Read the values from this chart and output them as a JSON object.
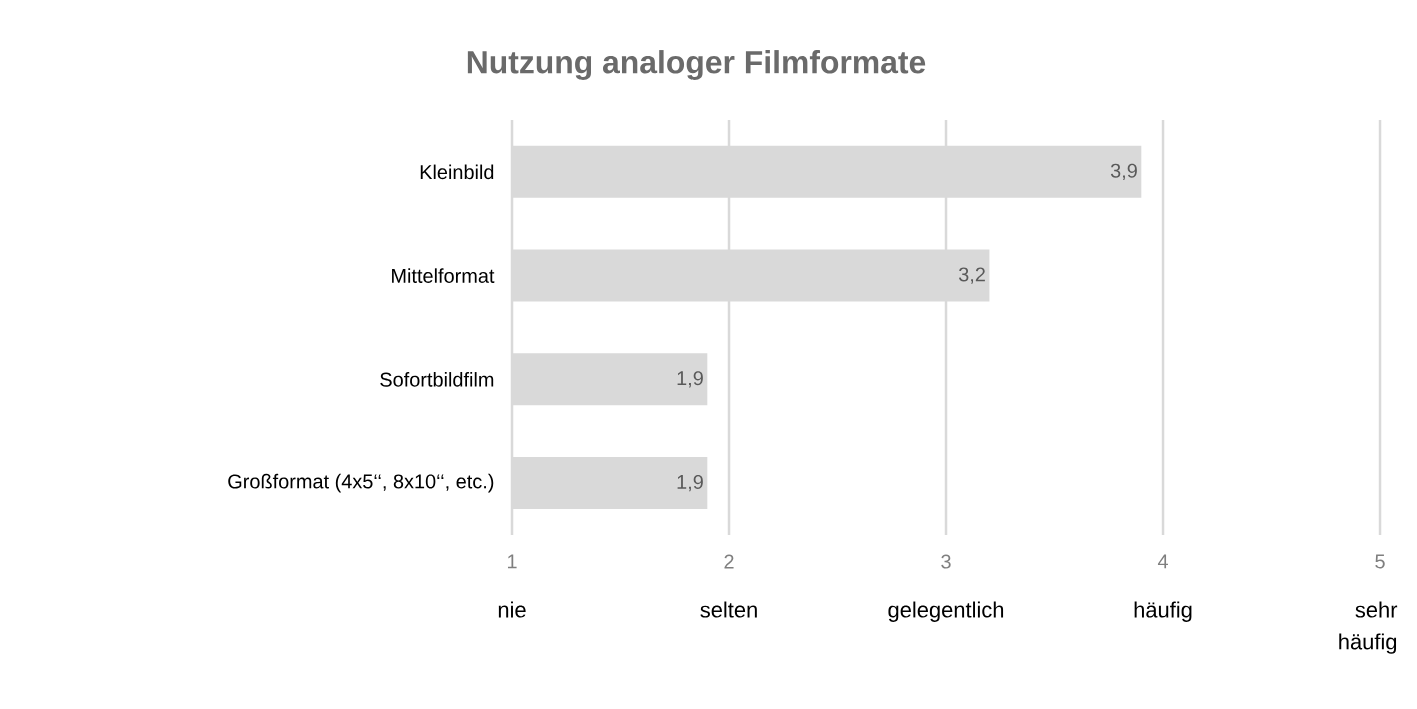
{
  "chart_data": {
    "type": "bar",
    "orientation": "horizontal",
    "title": "Nutzung analoger Filmformate",
    "categories": [
      "Kleinbild",
      "Mittelformat",
      "Sofortbildfilm",
      "Großformat (4x5‘‘, 8x10‘‘, etc.)"
    ],
    "values": [
      3.9,
      3.2,
      1.9,
      1.9
    ],
    "value_labels": [
      "3,9",
      "3,2",
      "1,9",
      "1,9"
    ],
    "color": "#d9d9d9",
    "xlim": [
      1,
      5
    ],
    "xticks": [
      1,
      2,
      3,
      4,
      5
    ],
    "grid": "x",
    "annotations": [
      "nie",
      "selten",
      "gelegentlich",
      "häufig",
      "sehr häufig"
    ]
  }
}
